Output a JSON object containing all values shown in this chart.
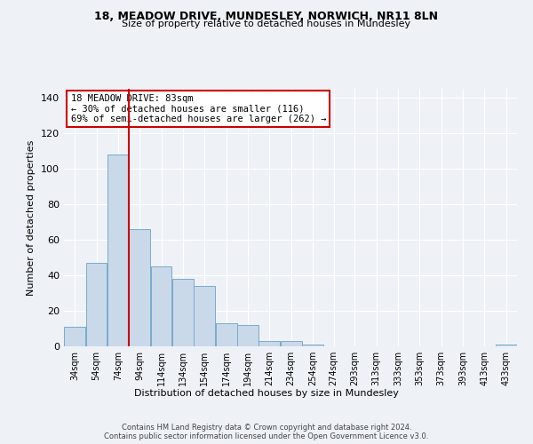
{
  "title": "18, MEADOW DRIVE, MUNDESLEY, NORWICH, NR11 8LN",
  "subtitle": "Size of property relative to detached houses in Mundesley",
  "xlabel": "Distribution of detached houses by size in Mundesley",
  "ylabel": "Number of detached properties",
  "bar_color": "#c9d9ea",
  "bar_edge_color": "#7aaac8",
  "background_color": "#eef2f7",
  "grid_color": "#ffffff",
  "annotation_text": "18 MEADOW DRIVE: 83sqm\n← 30% of detached houses are smaller (116)\n69% of semi-detached houses are larger (262) →",
  "annotation_box_color": "#ffffff",
  "annotation_box_edge": "#cc0000",
  "vline_x": 84,
  "vline_color": "#cc0000",
  "categories": [
    "34sqm",
    "54sqm",
    "74sqm",
    "94sqm",
    "114sqm",
    "134sqm",
    "154sqm",
    "174sqm",
    "194sqm",
    "214sqm",
    "234sqm",
    "254sqm",
    "274sqm",
    "293sqm",
    "313sqm",
    "333sqm",
    "353sqm",
    "373sqm",
    "393sqm",
    "413sqm",
    "433sqm"
  ],
  "bin_edges": [
    24,
    44,
    64,
    84,
    104,
    124,
    144,
    164,
    184,
    204,
    224,
    244,
    264,
    283,
    303,
    323,
    343,
    363,
    383,
    403,
    423,
    443
  ],
  "values": [
    11,
    47,
    108,
    66,
    45,
    38,
    34,
    13,
    12,
    3,
    3,
    1,
    0,
    0,
    0,
    0,
    0,
    0,
    0,
    0,
    1
  ],
  "ylim": [
    0,
    145
  ],
  "yticks": [
    0,
    20,
    40,
    60,
    80,
    100,
    120,
    140
  ],
  "footer1": "Contains HM Land Registry data © Crown copyright and database right 2024.",
  "footer2": "Contains public sector information licensed under the Open Government Licence v3.0."
}
